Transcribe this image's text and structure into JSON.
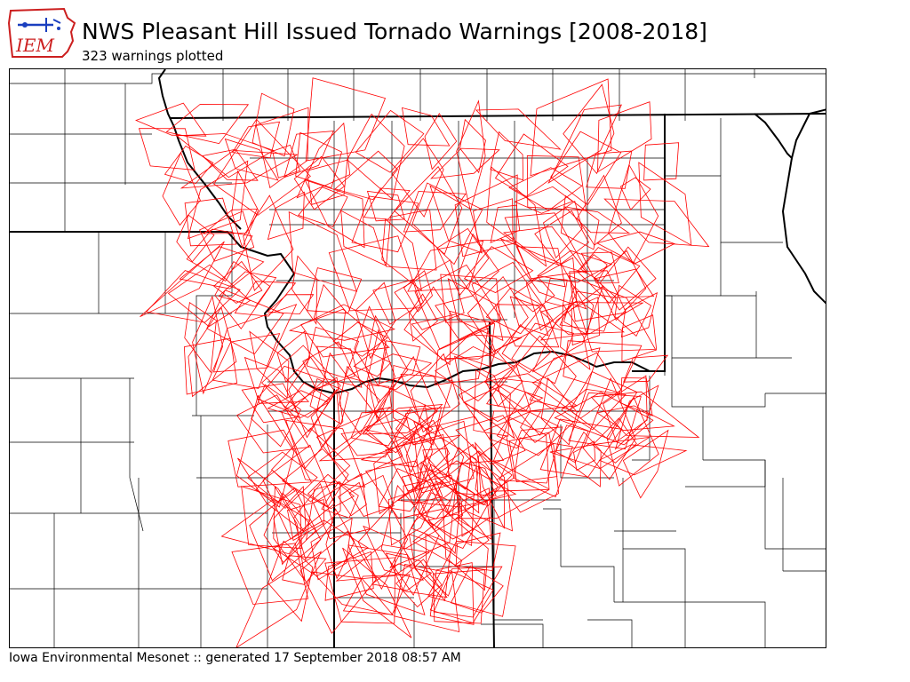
{
  "header": {
    "logo_text": "IEM",
    "title": "NWS Pleasant Hill Issued Tornado Warnings [2008-2018]",
    "subtitle": "323 warnings plotted"
  },
  "footer": {
    "credit": "Iowa Environmental Mesonet :: generated 17 September 2018 08:57 AM"
  },
  "map": {
    "warning_count": 323,
    "colors": {
      "warning_polygon": "#ff0000",
      "county_border": "#000000",
      "background": "#ffffff",
      "logo_red": "#cc1f1f",
      "logo_blue": "#1a3fbf"
    }
  }
}
